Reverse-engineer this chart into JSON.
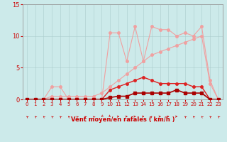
{
  "x": [
    0,
    1,
    2,
    3,
    4,
    5,
    6,
    7,
    8,
    9,
    10,
    11,
    12,
    13,
    14,
    15,
    16,
    17,
    18,
    19,
    20,
    21,
    22,
    23
  ],
  "series": {
    "pink_spiky": [
      0,
      0,
      0,
      2,
      2,
      0,
      0,
      0,
      0,
      0,
      10.5,
      10.5,
      6,
      11.5,
      6,
      11.5,
      11,
      11,
      10,
      10.5,
      10,
      11.5,
      3,
      0
    ],
    "pink_linear": [
      0,
      0,
      0,
      0.5,
      0.5,
      0.5,
      0.5,
      0.5,
      0.5,
      1,
      2,
      3,
      4,
      5,
      6,
      7,
      7.5,
      8,
      8.5,
      9,
      9.5,
      10,
      2.5,
      0
    ],
    "red_hump": [
      0,
      0,
      0,
      0,
      0,
      0,
      0,
      0,
      0,
      0,
      1.5,
      2,
      2.5,
      3,
      3.5,
      3,
      2.5,
      2.5,
      2.5,
      2.5,
      2,
      2,
      0,
      0
    ],
    "red_flat": [
      0,
      0,
      0,
      0,
      0,
      0,
      0,
      0,
      0,
      0,
      0.3,
      0.5,
      0.5,
      1,
      1,
      1,
      1,
      1,
      1.5,
      1,
      1,
      1,
      0,
      0
    ]
  },
  "colors": {
    "pink_spiky": "#f0a0a0",
    "pink_linear": "#f0a0a0",
    "red_hump": "#dd2222",
    "red_flat": "#aa0000"
  },
  "background_color": "#cceaea",
  "grid_color": "#aacccc",
  "xlabel": "Vent moyen/en rafales ( km/h )",
  "xlim": [
    -0.5,
    23.5
  ],
  "ylim": [
    0,
    15
  ],
  "xticks": [
    0,
    1,
    2,
    3,
    4,
    5,
    6,
    7,
    8,
    9,
    10,
    11,
    12,
    13,
    14,
    15,
    16,
    17,
    18,
    19,
    20,
    21,
    22,
    23
  ],
  "yticks": [
    0,
    5,
    10,
    15
  ],
  "wind_dirs": [
    315,
    315,
    315,
    315,
    315,
    315,
    315,
    315,
    315,
    225,
    135,
    90,
    90,
    90,
    90,
    45,
    90,
    90,
    90,
    315,
    315,
    315,
    315,
    315
  ],
  "tick_fontsize": 5,
  "xlabel_fontsize": 6
}
